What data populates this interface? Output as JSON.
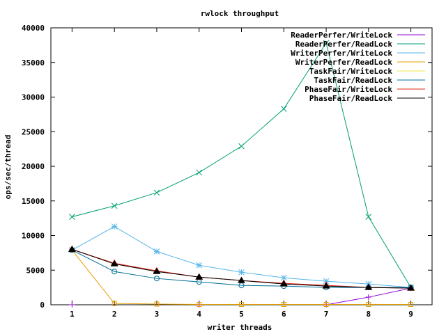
{
  "chart_data": {
    "type": "line",
    "title": "rwlock throughput",
    "xlabel": "writer threads",
    "ylabel": "ops/sec/thread",
    "x": [
      1,
      2,
      3,
      4,
      5,
      6,
      7,
      8,
      9
    ],
    "xlim": [
      0.5,
      9.5
    ],
    "ylim": [
      0,
      40000
    ],
    "xticks": [
      "1",
      "2",
      "3",
      "4",
      "5",
      "6",
      "7",
      "8",
      "9"
    ],
    "yticks": [
      "0",
      "5000",
      "10000",
      "15000",
      "20000",
      "25000",
      "30000",
      "35000",
      "40000"
    ],
    "legend_position": "top-right",
    "grid": false,
    "series": [
      {
        "name": "ReaderPerfer/WriteLock",
        "color": "#9400d3",
        "marker": "plus",
        "values": [
          0,
          null,
          null,
          0,
          null,
          null,
          0,
          1100,
          2400
        ]
      },
      {
        "name": "ReaderPerfer/ReadLock",
        "color": "#009e73",
        "marker": "cross",
        "values": [
          12700,
          14300,
          16200,
          19100,
          22900,
          28300,
          37800,
          12700,
          2500
        ]
      },
      {
        "name": "WriterPerfer/WriteLock",
        "color": "#56b4e9",
        "marker": "star",
        "values": [
          7900,
          11300,
          7700,
          5700,
          4700,
          3900,
          3400,
          3000,
          2500
        ]
      },
      {
        "name": "WriterPerfer/ReadLock",
        "color": "#e69f00",
        "marker": "square",
        "values": [
          7900,
          200,
          100,
          50,
          50,
          50,
          50,
          50,
          50
        ]
      },
      {
        "name": "TaskFair/WriteLock",
        "color": "#f0e442",
        "marker": "circle",
        "values": [
          7900,
          4800,
          3800,
          3300,
          2800,
          2700,
          2500,
          2500,
          2500
        ]
      },
      {
        "name": "TaskFair/ReadLock",
        "color": "#0072b2",
        "marker": "circle",
        "values": [
          7900,
          4800,
          3800,
          3300,
          2800,
          2700,
          2500,
          2500,
          2500
        ]
      },
      {
        "name": "PhaseFair/WriteLock",
        "color": "#e51e10",
        "marker": "triangle",
        "values": [
          8000,
          6000,
          4900,
          4000,
          3500,
          3100,
          2800,
          2500,
          2400
        ]
      },
      {
        "name": "PhaseFair/ReadLock",
        "color": "#000000",
        "marker": "triangle",
        "values": [
          8000,
          5900,
          4800,
          4000,
          3500,
          3000,
          2700,
          2500,
          2400
        ]
      }
    ]
  }
}
